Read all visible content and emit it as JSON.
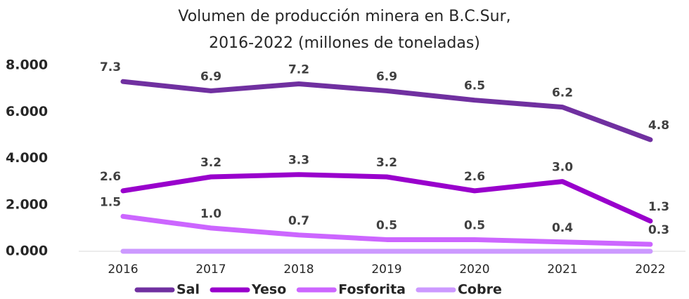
{
  "chart_data": {
    "type": "line",
    "title": "Volumen de producción minera en B.C.Sur,",
    "subtitle": "2016-2022 (millones de toneladas)",
    "categories": [
      "2016",
      "2017",
      "2018",
      "2019",
      "2020",
      "2021",
      "2022"
    ],
    "ylim": [
      0,
      8
    ],
    "yticks": [
      {
        "value": 0,
        "label": "0.000"
      },
      {
        "value": 2,
        "label": "2.000"
      },
      {
        "value": 4,
        "label": "4.000"
      },
      {
        "value": 6,
        "label": "6.000"
      },
      {
        "value": 8,
        "label": "8.000"
      }
    ],
    "series": [
      {
        "name": "Sal",
        "color": "#7030a0",
        "values": [
          7.3,
          6.9,
          7.2,
          6.9,
          6.5,
          6.2,
          4.8
        ],
        "value_labels": [
          "7.3",
          "6.9",
          "7.2",
          "6.9",
          "6.5",
          "6.2",
          "4.8"
        ]
      },
      {
        "name": "Yeso",
        "color": "#9900cc",
        "values": [
          2.6,
          3.2,
          3.3,
          3.2,
          2.6,
          3.0,
          1.3
        ],
        "value_labels": [
          "2.6",
          "3.2",
          "3.3",
          "3.2",
          "2.6",
          "3.0",
          "1.3"
        ]
      },
      {
        "name": "Fosforita",
        "color": "#cc66ff",
        "values": [
          1.5,
          1.0,
          0.7,
          0.5,
          0.5,
          0.4,
          0.3
        ],
        "value_labels": [
          "1.5",
          "1.0",
          "0.7",
          "0.5",
          "0.5",
          "0.4",
          "0.3"
        ]
      },
      {
        "name": "Cobre",
        "color": "#cc99ff",
        "values": [
          0,
          0,
          0,
          0,
          0,
          0,
          0
        ]
      }
    ]
  }
}
